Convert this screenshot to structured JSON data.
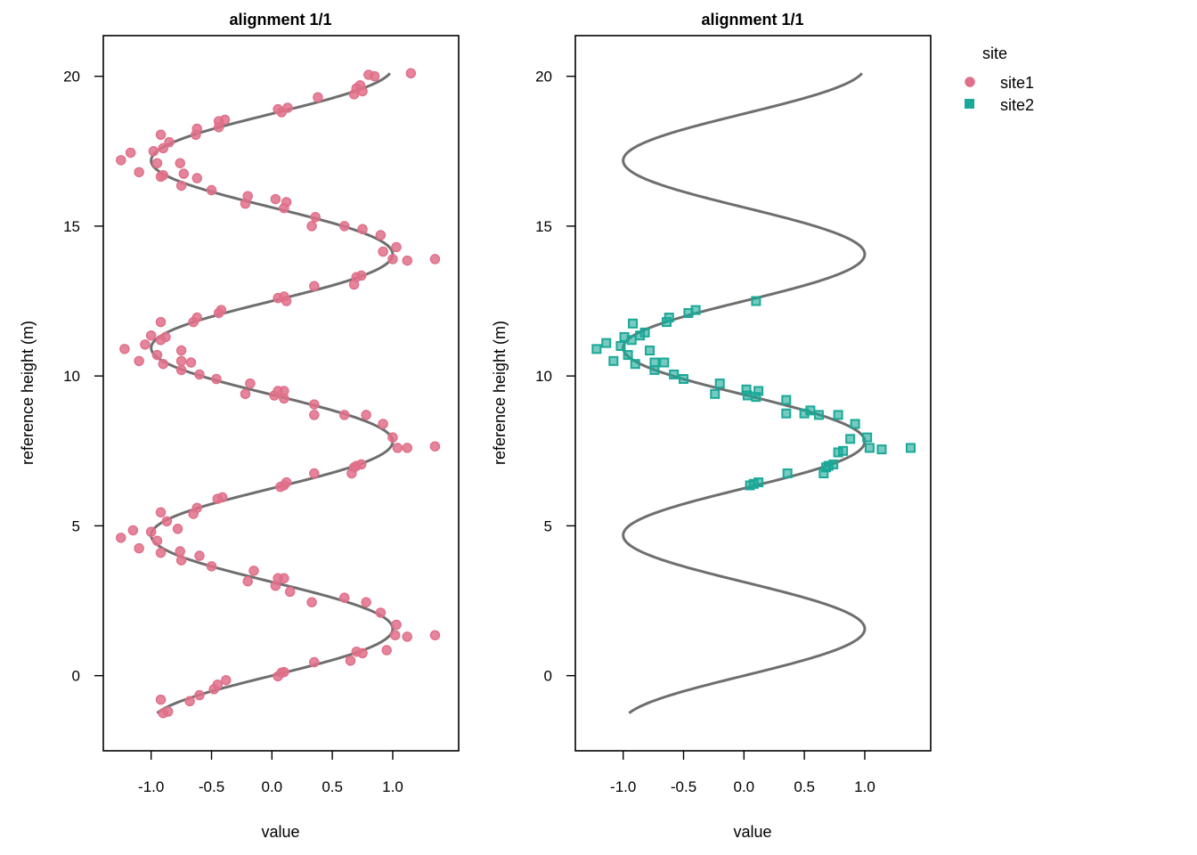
{
  "chart_data": [
    {
      "type": "scatter",
      "title": "alignment 1/1",
      "xlabel": "value",
      "ylabel": "reference height (m)",
      "xlim": [
        -1.3,
        1.45
      ],
      "ylim": [
        -2.15,
        21.0
      ],
      "xticks": [
        "-1.0",
        "-0.5",
        "0.0",
        "0.5",
        "1.0"
      ],
      "xtick_values": [
        -1.0,
        -0.5,
        0.0,
        0.5,
        1.0
      ],
      "yticks": [
        "0",
        "5",
        "10",
        "15",
        "20"
      ],
      "ytick_values": [
        0,
        5,
        10,
        15,
        20
      ],
      "grid": false,
      "line": {
        "name": "",
        "color": "#666666",
        "y_start": -1.25,
        "y_end": 20.1
      },
      "series": [
        {
          "name": "site1",
          "marker": "circle",
          "color": "#e0708a",
          "points": [
            [
              -0.86,
              -1.2
            ],
            [
              -0.9,
              -1.25
            ],
            [
              -0.92,
              -0.8
            ],
            [
              -0.68,
              -0.85
            ],
            [
              -0.6,
              -0.65
            ],
            [
              -0.48,
              -0.45
            ],
            [
              -0.45,
              -0.3
            ],
            [
              -0.38,
              -0.15
            ],
            [
              0.05,
              -0.02
            ],
            [
              0.08,
              0.1
            ],
            [
              0.1,
              0.12
            ],
            [
              0.35,
              0.45
            ],
            [
              0.65,
              0.5
            ],
            [
              0.7,
              0.8
            ],
            [
              0.75,
              0.75
            ],
            [
              0.95,
              0.85
            ],
            [
              1.03,
              1.7
            ],
            [
              1.12,
              1.3
            ],
            [
              1.35,
              1.35
            ],
            [
              1.02,
              1.35
            ],
            [
              0.9,
              2.1
            ],
            [
              0.78,
              2.45
            ],
            [
              0.6,
              2.6
            ],
            [
              0.33,
              2.45
            ],
            [
              0.15,
              2.8
            ],
            [
              0.03,
              3.0
            ],
            [
              0.05,
              3.25
            ],
            [
              0.1,
              3.25
            ],
            [
              -0.2,
              3.15
            ],
            [
              -0.15,
              3.5
            ],
            [
              -0.5,
              3.65
            ],
            [
              -0.6,
              4.0
            ],
            [
              -0.75,
              3.85
            ],
            [
              -0.76,
              4.15
            ],
            [
              -0.92,
              4.1
            ],
            [
              -0.95,
              4.5
            ],
            [
              -1.1,
              4.25
            ],
            [
              -1.15,
              4.85
            ],
            [
              -1.0,
              4.8
            ],
            [
              -1.25,
              4.6
            ],
            [
              -0.92,
              5.45
            ],
            [
              -0.87,
              5.15
            ],
            [
              -0.78,
              4.9
            ],
            [
              -0.65,
              5.4
            ],
            [
              -0.62,
              5.6
            ],
            [
              -0.45,
              5.9
            ],
            [
              -0.41,
              5.95
            ],
            [
              0.07,
              6.3
            ],
            [
              0.1,
              6.35
            ],
            [
              0.12,
              6.45
            ],
            [
              0.35,
              6.75
            ],
            [
              0.68,
              6.95
            ],
            [
              0.7,
              7.0
            ],
            [
              0.74,
              7.05
            ],
            [
              0.66,
              6.75
            ],
            [
              1.04,
              7.6
            ],
            [
              1.12,
              7.6
            ],
            [
              1.35,
              7.65
            ],
            [
              1.0,
              7.95
            ],
            [
              0.92,
              8.4
            ],
            [
              0.78,
              8.7
            ],
            [
              0.6,
              8.7
            ],
            [
              0.35,
              8.7
            ],
            [
              0.35,
              9.05
            ],
            [
              0.1,
              9.25
            ],
            [
              0.1,
              9.5
            ],
            [
              0.05,
              9.5
            ],
            [
              0.02,
              9.35
            ],
            [
              -0.22,
              9.4
            ],
            [
              -0.18,
              9.75
            ],
            [
              -0.46,
              9.9
            ],
            [
              -0.6,
              10.05
            ],
            [
              -0.67,
              10.45
            ],
            [
              -0.75,
              10.2
            ],
            [
              -0.75,
              10.5
            ],
            [
              -0.9,
              10.4
            ],
            [
              -0.95,
              10.7
            ],
            [
              -1.1,
              10.5
            ],
            [
              -1.05,
              11.05
            ],
            [
              -1.22,
              10.9
            ],
            [
              -0.92,
              11.2
            ],
            [
              -1.0,
              11.35
            ],
            [
              -0.88,
              11.3
            ],
            [
              -0.75,
              10.85
            ],
            [
              -0.92,
              11.8
            ],
            [
              -0.65,
              11.8
            ],
            [
              -0.62,
              11.95
            ],
            [
              -0.44,
              12.1
            ],
            [
              -0.42,
              12.2
            ],
            [
              0.05,
              12.6
            ],
            [
              0.1,
              12.65
            ],
            [
              0.12,
              12.5
            ],
            [
              0.35,
              13.0
            ],
            [
              0.68,
              13.05
            ],
            [
              0.7,
              13.3
            ],
            [
              0.74,
              13.35
            ],
            [
              1.0,
              13.9
            ],
            [
              1.03,
              14.3
            ],
            [
              1.12,
              13.85
            ],
            [
              1.35,
              13.9
            ],
            [
              0.92,
              14.15
            ],
            [
              0.9,
              14.7
            ],
            [
              0.75,
              14.9
            ],
            [
              0.6,
              15.0
            ],
            [
              0.33,
              15.0
            ],
            [
              0.36,
              15.3
            ],
            [
              0.1,
              15.6
            ],
            [
              0.12,
              15.8
            ],
            [
              0.03,
              15.9
            ],
            [
              -0.22,
              15.75
            ],
            [
              -0.2,
              16.0
            ],
            [
              -0.5,
              16.2
            ],
            [
              -0.62,
              16.6
            ],
            [
              -0.75,
              16.35
            ],
            [
              -0.73,
              16.75
            ],
            [
              -0.9,
              16.7
            ],
            [
              -0.92,
              16.65
            ],
            [
              -1.1,
              16.8
            ],
            [
              -0.95,
              17.1
            ],
            [
              -0.98,
              17.5
            ],
            [
              -1.25,
              17.2
            ],
            [
              -1.17,
              17.45
            ],
            [
              -0.9,
              17.6
            ],
            [
              -0.85,
              17.8
            ],
            [
              -0.76,
              17.1
            ],
            [
              -0.92,
              18.05
            ],
            [
              -0.62,
              18.25
            ],
            [
              -0.63,
              18.05
            ],
            [
              -0.44,
              18.3
            ],
            [
              -0.44,
              18.5
            ],
            [
              -0.39,
              18.55
            ],
            [
              0.05,
              18.9
            ],
            [
              0.08,
              18.8
            ],
            [
              0.13,
              18.95
            ],
            [
              0.38,
              19.3
            ],
            [
              0.68,
              19.4
            ],
            [
              0.73,
              19.7
            ],
            [
              0.75,
              19.5
            ],
            [
              0.7,
              19.6
            ],
            [
              0.8,
              20.05
            ],
            [
              0.85,
              20.0
            ],
            [
              1.15,
              20.1
            ]
          ]
        }
      ]
    },
    {
      "type": "scatter",
      "title": "alignment 1/1",
      "xlabel": "value",
      "ylabel": "reference height (m)",
      "xlim": [
        -1.3,
        1.45
      ],
      "ylim": [
        -2.15,
        21.0
      ],
      "xticks": [
        "-1.0",
        "-0.5",
        "0.0",
        "0.5",
        "1.0"
      ],
      "xtick_values": [
        -1.0,
        -0.5,
        0.0,
        0.5,
        1.0
      ],
      "yticks": [
        "0",
        "5",
        "10",
        "15",
        "20"
      ],
      "ytick_values": [
        0,
        5,
        10,
        15,
        20
      ],
      "grid": false,
      "line": {
        "name": "",
        "color": "#666666",
        "y_start": -1.25,
        "y_end": 20.1
      },
      "series": [
        {
          "name": "site2",
          "marker": "square",
          "color": "#1aa898",
          "points": [
            [
              0.05,
              6.35
            ],
            [
              0.08,
              6.4
            ],
            [
              0.12,
              6.45
            ],
            [
              0.36,
              6.75
            ],
            [
              0.68,
              6.95
            ],
            [
              0.7,
              7.0
            ],
            [
              0.74,
              7.05
            ],
            [
              0.66,
              6.75
            ],
            [
              0.78,
              7.45
            ],
            [
              0.82,
              7.5
            ],
            [
              1.04,
              7.6
            ],
            [
              1.14,
              7.55
            ],
            [
              1.38,
              7.6
            ],
            [
              1.02,
              7.95
            ],
            [
              0.88,
              7.9
            ],
            [
              0.92,
              8.4
            ],
            [
              0.78,
              8.7
            ],
            [
              0.62,
              8.7
            ],
            [
              0.5,
              8.75
            ],
            [
              0.55,
              8.85
            ],
            [
              0.35,
              8.75
            ],
            [
              0.35,
              9.2
            ],
            [
              0.1,
              9.3
            ],
            [
              0.12,
              9.5
            ],
            [
              0.02,
              9.55
            ],
            [
              0.03,
              9.35
            ],
            [
              -0.24,
              9.4
            ],
            [
              -0.2,
              9.75
            ],
            [
              -0.5,
              9.9
            ],
            [
              -0.58,
              10.05
            ],
            [
              -0.66,
              10.45
            ],
            [
              -0.74,
              10.2
            ],
            [
              -0.74,
              10.45
            ],
            [
              -0.9,
              10.4
            ],
            [
              -0.96,
              10.7
            ],
            [
              -1.08,
              10.5
            ],
            [
              -1.02,
              11.0
            ],
            [
              -1.22,
              10.9
            ],
            [
              -1.14,
              11.1
            ],
            [
              -0.93,
              11.2
            ],
            [
              -0.99,
              11.3
            ],
            [
              -0.86,
              11.35
            ],
            [
              -0.82,
              11.45
            ],
            [
              -0.78,
              10.85
            ],
            [
              -0.92,
              11.75
            ],
            [
              -0.64,
              11.8
            ],
            [
              -0.62,
              11.95
            ],
            [
              -0.46,
              12.1
            ],
            [
              -0.4,
              12.2
            ],
            [
              0.1,
              12.5
            ]
          ]
        }
      ]
    }
  ],
  "legend": {
    "title": "site",
    "placement": "right",
    "items": [
      {
        "label": "site1",
        "marker": "circle",
        "color": "#e0708a"
      },
      {
        "label": "site2",
        "marker": "square",
        "color": "#1aa898"
      }
    ]
  }
}
